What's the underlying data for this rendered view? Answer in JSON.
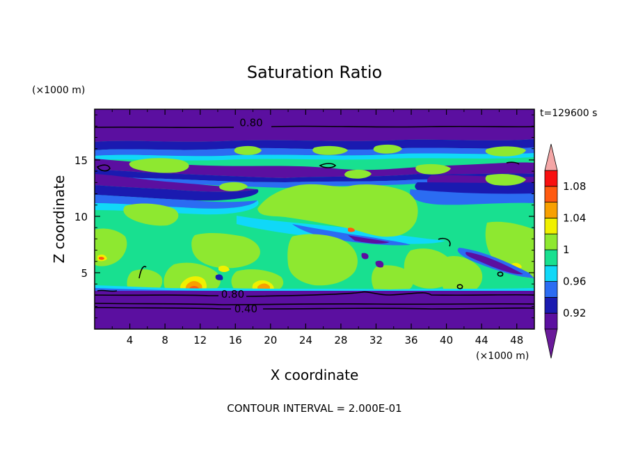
{
  "chart_data": {
    "type": "heatmap",
    "title": "Saturation Ratio",
    "xlabel": "X coordinate",
    "ylabel": "Z coordinate",
    "x_unit": "(×1000 m)",
    "z_unit": "(×1000 m)",
    "time_label": "t=129600 s",
    "footer": "CONTOUR INTERVAL = 2.000E-01",
    "xlim": [
      0,
      50
    ],
    "ylim": [
      0,
      19.5
    ],
    "x_ticks": [
      4,
      8,
      12,
      16,
      20,
      24,
      28,
      32,
      36,
      40,
      44,
      48
    ],
    "y_ticks": [
      5,
      10,
      15
    ],
    "colorbar": {
      "levels": [
        0.9,
        0.92,
        0.94,
        0.96,
        0.98,
        1.0,
        1.02,
        1.04,
        1.06,
        1.08,
        1.1
      ],
      "labels": [
        "0.92",
        "0.96",
        "1",
        "1.04",
        "1.08"
      ],
      "label_values": [
        0.92,
        0.96,
        1.0,
        1.04,
        1.08
      ],
      "colors": [
        "#5b0fa0",
        "#1a1ab0",
        "#2b6cf2",
        "#10d8f8",
        "#18e090",
        "#8ee830",
        "#f0f000",
        "#f8a000",
        "#ff5a10",
        "#f81010"
      ],
      "under_color": "#6a1a9a",
      "over_color": "#f4a6a6"
    },
    "contours": [
      {
        "label": "0.80",
        "z": 18.3
      },
      {
        "label": "0.80",
        "z": 3.1
      },
      {
        "label": "0.40",
        "z": 1.8
      }
    ]
  }
}
